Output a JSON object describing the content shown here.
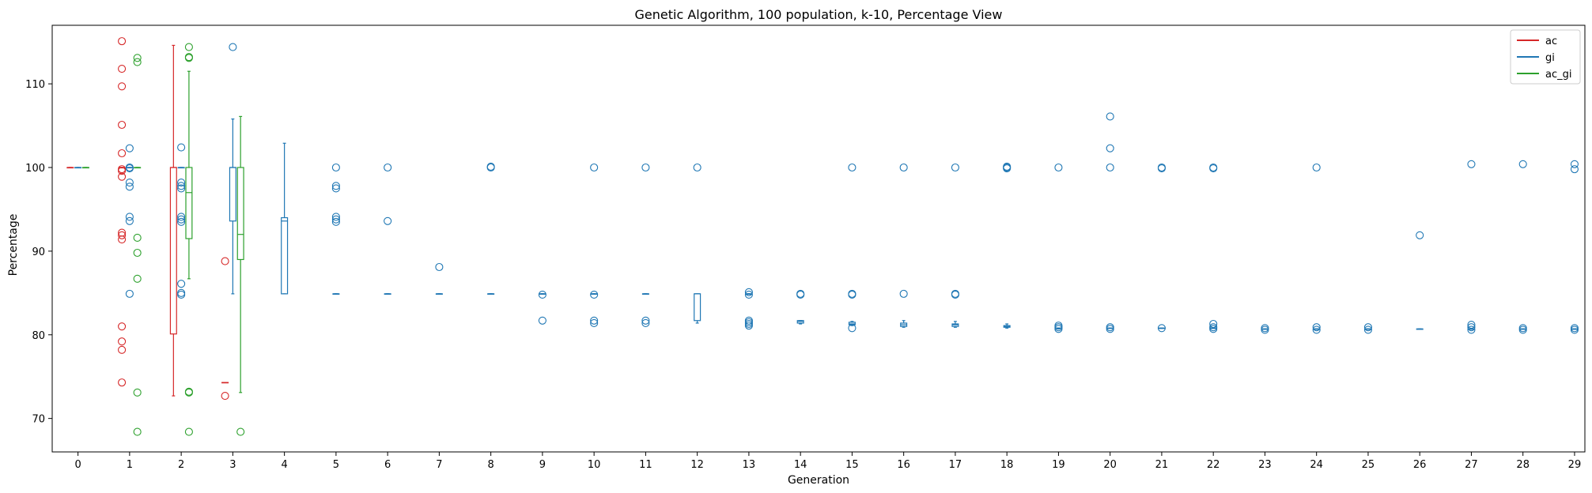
{
  "chart_data": {
    "type": "boxplot",
    "title": "Genetic Algorithm, 100 population, k-10, Percentage View",
    "xlabel": "Generation",
    "ylabel": "Percentage",
    "xlim": [
      -0.5,
      29.2
    ],
    "ylim": [
      66,
      117
    ],
    "grid": false,
    "legend_position": "top-right",
    "x_ticks": [
      0,
      1,
      2,
      3,
      4,
      5,
      6,
      7,
      8,
      9,
      10,
      11,
      12,
      13,
      14,
      15,
      16,
      17,
      18,
      19,
      20,
      21,
      22,
      23,
      24,
      25,
      26,
      27,
      28,
      29
    ],
    "y_ticks": [
      70,
      80,
      90,
      100,
      110
    ],
    "series": [
      {
        "name": "ac",
        "color": "#d62728",
        "offset": -0.15,
        "boxes": [
          {
            "x": 0,
            "q1": 100,
            "median": 100,
            "q3": 100,
            "whislo": 100,
            "whishi": 100,
            "fliers": []
          },
          {
            "x": 1,
            "q1": 100,
            "median": 100,
            "q3": 100,
            "whislo": 100,
            "whishi": 100,
            "fliers": [
              115.1,
              111.8,
              109.7,
              105.1,
              101.7,
              99.8,
              99.6,
              98.9,
              92.2,
              91.9,
              91.4,
              81.0,
              79.2,
              78.2,
              74.3
            ]
          },
          {
            "x": 2,
            "q1": 80.1,
            "median": 100,
            "q3": 100,
            "whislo": 72.7,
            "whishi": 114.6,
            "fliers": []
          },
          {
            "x": 3,
            "q1": 74.3,
            "median": 74.3,
            "q3": 74.3,
            "whislo": 74.3,
            "whishi": 74.3,
            "fliers": [
              88.8,
              72.7
            ]
          }
        ]
      },
      {
        "name": "gi",
        "color": "#1f77b4",
        "offset": 0,
        "boxes": [
          {
            "x": 0,
            "q1": 100,
            "median": 100,
            "q3": 100,
            "whislo": 100,
            "whishi": 100,
            "fliers": []
          },
          {
            "x": 1,
            "q1": 100,
            "median": 100,
            "q3": 100,
            "whislo": 100,
            "whishi": 100,
            "fliers": [
              102.3,
              100.0,
              99.9,
              98.2,
              97.7,
              94.1,
              93.6,
              84.9
            ]
          },
          {
            "x": 2,
            "q1": 100,
            "median": 100,
            "q3": 100,
            "whislo": 100,
            "whishi": 100,
            "fliers": [
              102.4,
              98.2,
              97.8,
              97.5,
              94.1,
              93.8,
              93.5,
              86.1,
              85.0,
              84.8
            ]
          },
          {
            "x": 3,
            "q1": 93.6,
            "median": 100,
            "q3": 100,
            "whislo": 84.9,
            "whishi": 105.8,
            "fliers": [
              114.4
            ]
          },
          {
            "x": 4,
            "q1": 84.9,
            "median": 93.6,
            "q3": 94.0,
            "whislo": 84.9,
            "whishi": 102.9,
            "fliers": []
          },
          {
            "x": 5,
            "q1": 84.9,
            "median": 84.9,
            "q3": 84.9,
            "whislo": 84.9,
            "whishi": 84.9,
            "fliers": [
              100.0,
              97.8,
              97.5,
              94.1,
              93.8,
              93.5
            ]
          },
          {
            "x": 6,
            "q1": 84.9,
            "median": 84.9,
            "q3": 84.9,
            "whislo": 84.9,
            "whishi": 84.9,
            "fliers": [
              100.0,
              93.6
            ]
          },
          {
            "x": 7,
            "q1": 84.9,
            "median": 84.9,
            "q3": 84.9,
            "whislo": 84.9,
            "whishi": 84.9,
            "fliers": [
              88.1
            ]
          },
          {
            "x": 8,
            "q1": 84.9,
            "median": 84.9,
            "q3": 84.9,
            "whislo": 84.9,
            "whishi": 84.9,
            "fliers": [
              100.0,
              100.1
            ]
          },
          {
            "x": 9,
            "q1": 84.9,
            "median": 84.9,
            "q3": 84.9,
            "whislo": 84.9,
            "whishi": 84.9,
            "fliers": [
              84.8,
              81.7
            ]
          },
          {
            "x": 10,
            "q1": 84.9,
            "median": 84.9,
            "q3": 84.9,
            "whislo": 84.9,
            "whishi": 84.9,
            "fliers": [
              100.0,
              84.8,
              81.7,
              81.4
            ]
          },
          {
            "x": 11,
            "q1": 84.9,
            "median": 84.9,
            "q3": 84.9,
            "whislo": 84.9,
            "whishi": 84.9,
            "fliers": [
              100.0,
              81.7,
              81.4
            ]
          },
          {
            "x": 12,
            "q1": 81.7,
            "median": 84.9,
            "q3": 84.9,
            "whislo": 81.4,
            "whishi": 84.9,
            "fliers": [
              100.0
            ]
          },
          {
            "x": 13,
            "q1": 84.9,
            "median": 84.9,
            "q3": 84.9,
            "whislo": 84.9,
            "whishi": 84.9,
            "fliers": [
              85.1,
              84.8,
              81.7,
              81.5,
              81.3,
              81.1
            ]
          },
          {
            "x": 14,
            "q1": 81.4,
            "median": 81.6,
            "q3": 81.7,
            "whislo": 81.3,
            "whishi": 81.7,
            "fliers": [
              84.9,
              84.8
            ]
          },
          {
            "x": 15,
            "q1": 81.2,
            "median": 81.3,
            "q3": 81.5,
            "whislo": 81.1,
            "whishi": 81.6,
            "fliers": [
              100.0,
              84.9,
              84.8,
              80.8
            ]
          },
          {
            "x": 16,
            "q1": 81.0,
            "median": 81.2,
            "q3": 81.4,
            "whislo": 80.9,
            "whishi": 81.7,
            "fliers": [
              100.0,
              84.9
            ]
          },
          {
            "x": 17,
            "q1": 81.0,
            "median": 81.2,
            "q3": 81.3,
            "whislo": 80.9,
            "whishi": 81.6,
            "fliers": [
              100.0,
              84.9,
              84.8
            ]
          },
          {
            "x": 18,
            "q1": 80.9,
            "median": 81.0,
            "q3": 81.1,
            "whislo": 80.8,
            "whishi": 81.3,
            "fliers": [
              100.0,
              100.1,
              99.9
            ]
          },
          {
            "x": 19,
            "q1": 80.8,
            "median": 80.8,
            "q3": 80.8,
            "whislo": 80.8,
            "whishi": 80.8,
            "fliers": [
              100.0,
              81.1,
              80.9,
              80.7
            ]
          },
          {
            "x": 20,
            "q1": 80.8,
            "median": 80.8,
            "q3": 80.8,
            "whislo": 80.8,
            "whishi": 80.8,
            "fliers": [
              106.1,
              102.3,
              100.0,
              80.9,
              80.7
            ]
          },
          {
            "x": 21,
            "q1": 80.8,
            "median": 80.8,
            "q3": 80.8,
            "whislo": 80.8,
            "whishi": 80.8,
            "fliers": [
              100.0,
              99.9,
              80.8
            ]
          },
          {
            "x": 22,
            "q1": 80.8,
            "median": 80.8,
            "q3": 80.8,
            "whislo": 80.8,
            "whishi": 80.8,
            "fliers": [
              100.0,
              99.9,
              81.3,
              80.9,
              80.7
            ]
          },
          {
            "x": 23,
            "q1": 80.7,
            "median": 80.7,
            "q3": 80.7,
            "whislo": 80.7,
            "whishi": 80.7,
            "fliers": [
              80.8,
              80.6
            ]
          },
          {
            "x": 24,
            "q1": 80.7,
            "median": 80.7,
            "q3": 80.7,
            "whislo": 80.7,
            "whishi": 80.7,
            "fliers": [
              100.0,
              80.9,
              80.6
            ]
          },
          {
            "x": 25,
            "q1": 80.7,
            "median": 80.7,
            "q3": 80.7,
            "whislo": 80.7,
            "whishi": 80.7,
            "fliers": [
              80.9,
              80.6
            ]
          },
          {
            "x": 26,
            "q1": 80.7,
            "median": 80.7,
            "q3": 80.7,
            "whislo": 80.7,
            "whishi": 80.7,
            "fliers": [
              91.9
            ]
          },
          {
            "x": 27,
            "q1": 80.7,
            "median": 80.7,
            "q3": 80.7,
            "whislo": 80.7,
            "whishi": 80.7,
            "fliers": [
              100.4,
              81.2,
              80.9,
              80.6
            ]
          },
          {
            "x": 28,
            "q1": 80.7,
            "median": 80.7,
            "q3": 80.7,
            "whislo": 80.7,
            "whishi": 80.7,
            "fliers": [
              100.4,
              80.8,
              80.6
            ]
          },
          {
            "x": 29,
            "q1": 80.7,
            "median": 80.7,
            "q3": 80.7,
            "whislo": 80.7,
            "whishi": 80.7,
            "fliers": [
              100.4,
              99.8,
              80.8,
              80.6
            ]
          }
        ]
      },
      {
        "name": "ac_gi",
        "color": "#2ca02c",
        "offset": 0.15,
        "boxes": [
          {
            "x": 0,
            "q1": 100,
            "median": 100,
            "q3": 100,
            "whislo": 100,
            "whishi": 100,
            "fliers": []
          },
          {
            "x": 1,
            "q1": 100,
            "median": 100,
            "q3": 100,
            "whislo": 100,
            "whishi": 100,
            "fliers": [
              113.1,
              112.6,
              91.6,
              89.8,
              86.7,
              73.1,
              68.4
            ]
          },
          {
            "x": 2,
            "q1": 91.5,
            "median": 97.0,
            "q3": 100,
            "whislo": 86.7,
            "whishi": 111.5,
            "fliers": [
              114.4,
              113.2,
              113.1,
              73.2,
              73.1,
              68.4
            ]
          },
          {
            "x": 3,
            "q1": 89.0,
            "median": 92.0,
            "q3": 100,
            "whislo": 73.1,
            "whishi": 106.1,
            "fliers": [
              68.4
            ]
          }
        ]
      }
    ]
  }
}
